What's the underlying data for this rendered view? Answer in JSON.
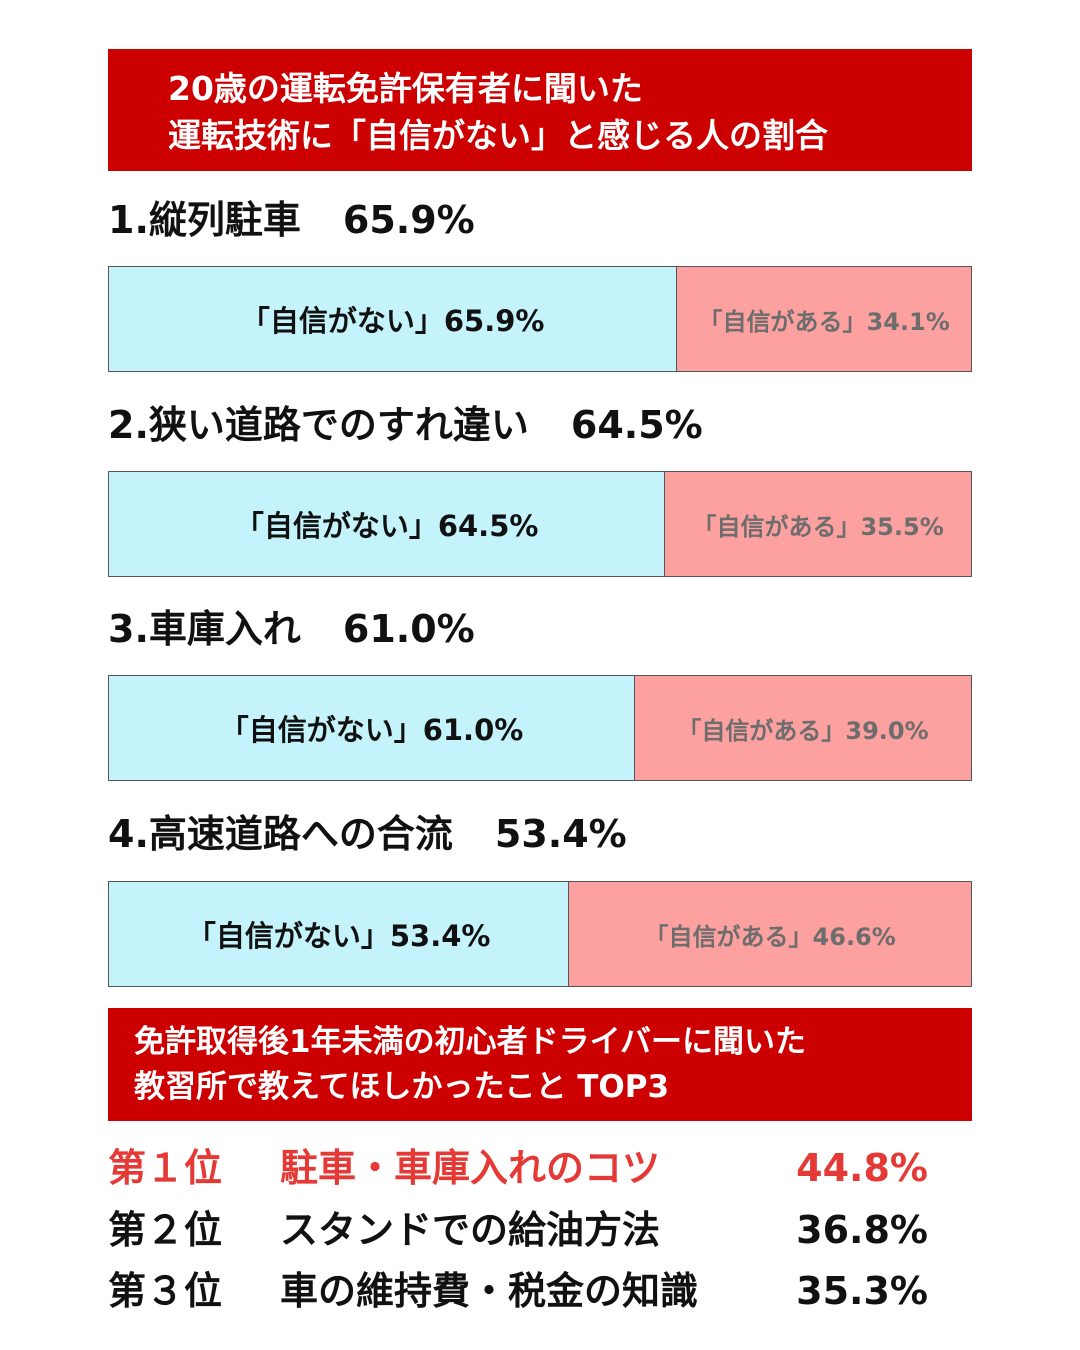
{
  "header": {
    "line1": "20歳の運転免許保有者に聞いた",
    "line2": "運転技術に「自信がない」と感じる人の割合"
  },
  "chart_data": {
    "type": "bar",
    "stacked": true,
    "orientation": "horizontal",
    "xlim": [
      0,
      100
    ],
    "categories": [
      "縦列駐車",
      "狭い道路でのすれ違い",
      "車庫入れ",
      "高速道路への合流"
    ],
    "series": [
      {
        "name": "「自信がない」",
        "values": [
          65.9,
          64.5,
          61.0,
          53.4
        ],
        "color": "#c4f3fb"
      },
      {
        "name": "「自信がある」",
        "values": [
          34.1,
          35.5,
          39.0,
          46.6
        ],
        "color": "#fca0a0"
      }
    ],
    "items": [
      {
        "title": "1.縦列駐車",
        "value_label": "65.9%",
        "no_label": "「自信がない」65.9%",
        "yes_label": "「自信がある」34.1%"
      },
      {
        "title": "2.狭い道路でのすれ違い",
        "value_label": "64.5%",
        "no_label": "「自信がない」64.5%",
        "yes_label": "「自信がある」35.5%"
      },
      {
        "title": "3.車庫入れ",
        "value_label": "61.0%",
        "no_label": "「自信がない」61.0%",
        "yes_label": "「自信がある」39.0%"
      },
      {
        "title": "4.高速道路への合流",
        "value_label": "53.4%",
        "no_label": "「自信がない」53.4%",
        "yes_label": "「自信がある」46.6%"
      }
    ]
  },
  "ranking": {
    "line1": "免許取得後1年未満の初心者ドライバーに聞いた",
    "line2": "教習所で教えてほしかったこと TOP3",
    "highlight_color": "#e53935",
    "items": [
      {
        "rank": "第１位",
        "name": "駐車・車庫入れのコツ",
        "percent": "44.8%"
      },
      {
        "rank": "第２位",
        "name": "スタンドでの給油方法",
        "percent": "36.8%"
      },
      {
        "rank": "第３位",
        "name": "車の維持費・税金の知識",
        "percent": "35.3%"
      }
    ]
  }
}
